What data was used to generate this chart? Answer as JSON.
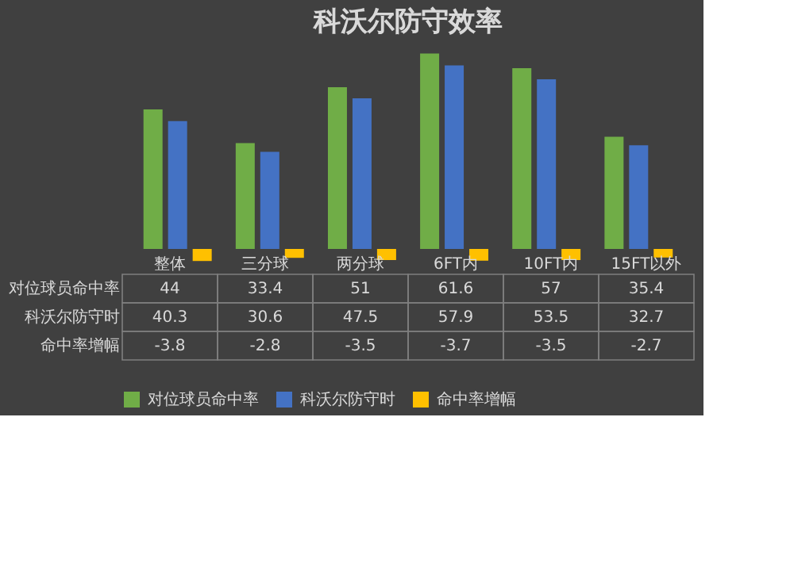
{
  "chart_data": {
    "type": "bar",
    "title": "科沃尔防守效率",
    "categories": [
      "整体",
      "三分球",
      "两分球",
      "6FT内",
      "10FT内",
      "15FT以外"
    ],
    "series": [
      {
        "name": "对位球员命中率",
        "color": "#70ad47",
        "values": [
          44,
          33.4,
          51,
          61.6,
          57,
          35.4
        ]
      },
      {
        "name": "科沃尔防守时",
        "color": "#4472c4",
        "values": [
          40.3,
          30.6,
          47.5,
          57.9,
          53.5,
          32.7
        ]
      },
      {
        "name": "命中率增幅",
        "color": "#ffc000",
        "values": [
          -3.8,
          -2.8,
          -3.5,
          -3.7,
          -3.5,
          -2.7
        ]
      }
    ],
    "data_labels": true,
    "legend": "bottom",
    "tick_labels": false
  }
}
